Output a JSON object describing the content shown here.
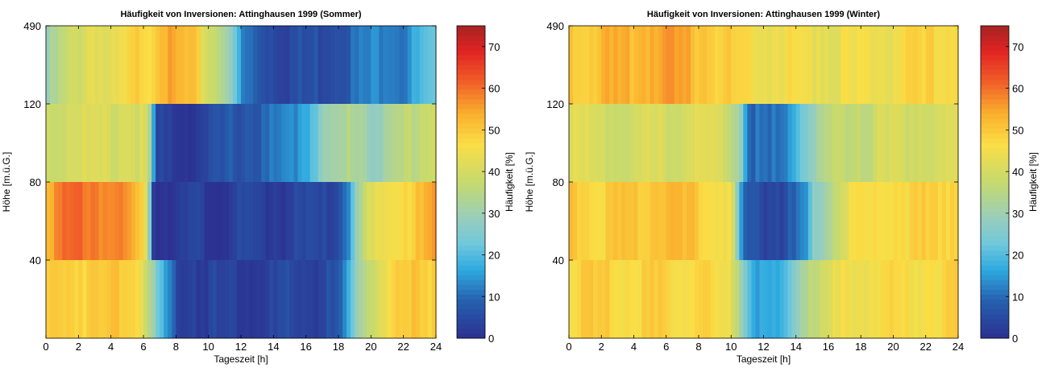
{
  "chart_data": [
    {
      "type": "heatmap",
      "title": "Häufigkeit von Inversionen: Attinghausen 1999 (Sommer)",
      "xlabel": "Tageszeit [h]",
      "ylabel": "Höhe [m.ü.G.]",
      "colorbar_label": "Häufigkeit [%]",
      "xlim": [
        0,
        24
      ],
      "x_ticks": [
        "0",
        "2",
        "4",
        "6",
        "8",
        "10",
        "12",
        "14",
        "16",
        "18",
        "20",
        "22",
        "24"
      ],
      "y_ticks": [
        "40",
        "80",
        "120",
        "490"
      ],
      "colorbar_ticks": [
        "0",
        "10",
        "20",
        "30",
        "40",
        "50",
        "60",
        "70"
      ],
      "clim": [
        0,
        75
      ],
      "bins_per_hour": 4,
      "rows": [
        {
          "band": "120-490",
          "keys": [
            [
              0,
              28
            ],
            [
              1,
              35
            ],
            [
              2,
              40
            ],
            [
              3,
              45
            ],
            [
              4,
              40
            ],
            [
              5,
              45
            ],
            [
              6,
              50
            ],
            [
              6.5,
              48
            ],
            [
              7,
              55
            ],
            [
              8,
              52
            ],
            [
              9,
              50
            ],
            [
              10,
              40
            ],
            [
              11,
              35
            ],
            [
              11.4,
              25
            ],
            [
              11.8,
              20
            ],
            [
              12,
              12
            ],
            [
              13,
              8
            ],
            [
              14,
              6
            ],
            [
              15,
              5
            ],
            [
              16,
              5
            ],
            [
              17,
              6
            ],
            [
              18,
              8
            ],
            [
              19,
              10
            ],
            [
              20,
              12
            ],
            [
              21,
              15
            ],
            [
              22,
              12
            ],
            [
              23,
              18
            ],
            [
              24,
              20
            ]
          ]
        },
        {
          "band": "80-120",
          "keys": [
            [
              0,
              38
            ],
            [
              1,
              40
            ],
            [
              2,
              42
            ],
            [
              3,
              40
            ],
            [
              4,
              40
            ],
            [
              5,
              42
            ],
            [
              6,
              40
            ],
            [
              6.5,
              30
            ],
            [
              6.7,
              4
            ],
            [
              7,
              2
            ],
            [
              8,
              3
            ],
            [
              9,
              2
            ],
            [
              10,
              3
            ],
            [
              11,
              6
            ],
            [
              12,
              8
            ],
            [
              13,
              8
            ],
            [
              14,
              10
            ],
            [
              15,
              12
            ],
            [
              16,
              18
            ],
            [
              17,
              28
            ],
            [
              18,
              30
            ],
            [
              19,
              35
            ],
            [
              20,
              30
            ],
            [
              21,
              30
            ],
            [
              22,
              35
            ],
            [
              23,
              38
            ],
            [
              24,
              40
            ]
          ]
        },
        {
          "band": "40-80",
          "keys": [
            [
              0,
              55
            ],
            [
              1,
              58
            ],
            [
              2,
              60
            ],
            [
              3,
              60
            ],
            [
              4,
              58
            ],
            [
              5,
              55
            ],
            [
              6,
              48
            ],
            [
              6.3,
              40
            ],
            [
              6.5,
              4
            ],
            [
              7,
              2
            ],
            [
              10,
              2
            ],
            [
              14,
              3
            ],
            [
              17,
              3
            ],
            [
              17.5,
              4
            ],
            [
              18,
              6
            ],
            [
              18.5,
              12
            ],
            [
              19,
              25
            ],
            [
              19.5,
              35
            ],
            [
              20,
              40
            ],
            [
              21,
              45
            ],
            [
              22,
              48
            ],
            [
              23,
              50
            ],
            [
              24,
              55
            ]
          ]
        },
        {
          "band": "0-40",
          "keys": [
            [
              0,
              48
            ],
            [
              1,
              50
            ],
            [
              2,
              50
            ],
            [
              3,
              48
            ],
            [
              4,
              50
            ],
            [
              5,
              52
            ],
            [
              6,
              45
            ],
            [
              6.5,
              30
            ],
            [
              7,
              20
            ],
            [
              7.5,
              12
            ],
            [
              8,
              5
            ],
            [
              10,
              3
            ],
            [
              14,
              3
            ],
            [
              17,
              4
            ],
            [
              18,
              6
            ],
            [
              18.5,
              12
            ],
            [
              19,
              25
            ],
            [
              19.5,
              35
            ],
            [
              20,
              40
            ],
            [
              21,
              45
            ],
            [
              22,
              48
            ],
            [
              23,
              50
            ],
            [
              24,
              50
            ]
          ]
        }
      ]
    },
    {
      "type": "heatmap",
      "title": "Häufigkeit von Inversionen: Attinghausen 1999 (Winter)",
      "xlabel": "Tageszeit [h]",
      "ylabel": "Höhe [m.ü.G.]",
      "colorbar_label": "Häufigkeit [%]",
      "xlim": [
        0,
        24
      ],
      "x_ticks": [
        "0",
        "2",
        "4",
        "6",
        "8",
        "10",
        "12",
        "14",
        "16",
        "18",
        "20",
        "22",
        "24"
      ],
      "y_ticks": [
        "40",
        "80",
        "120",
        "490"
      ],
      "colorbar_ticks": [
        "0",
        "10",
        "20",
        "30",
        "40",
        "50",
        "60",
        "70"
      ],
      "clim": [
        0,
        75
      ],
      "bins_per_hour": 4,
      "rows": [
        {
          "band": "120-490",
          "keys": [
            [
              0,
              50
            ],
            [
              2,
              52
            ],
            [
              4,
              52
            ],
            [
              5,
              55
            ],
            [
              6,
              55
            ],
            [
              7,
              53
            ],
            [
              8,
              52
            ],
            [
              9,
              50
            ],
            [
              10,
              48
            ],
            [
              11,
              47
            ],
            [
              12,
              46
            ],
            [
              13,
              45
            ],
            [
              14,
              45
            ],
            [
              16,
              44
            ],
            [
              18,
              44
            ],
            [
              20,
              45
            ],
            [
              22,
              47
            ],
            [
              24,
              48
            ]
          ]
        },
        {
          "band": "80-120",
          "keys": [
            [
              0,
              42
            ],
            [
              2,
              40
            ],
            [
              4,
              40
            ],
            [
              6,
              40
            ],
            [
              8,
              42
            ],
            [
              9,
              40
            ],
            [
              10,
              38
            ],
            [
              10.6,
              30
            ],
            [
              11,
              12
            ],
            [
              12,
              8
            ],
            [
              13,
              10
            ],
            [
              13.5,
              14
            ],
            [
              14,
              22
            ],
            [
              15,
              30
            ],
            [
              16,
              35
            ],
            [
              17,
              38
            ],
            [
              18,
              38
            ],
            [
              20,
              40
            ],
            [
              22,
              40
            ],
            [
              24,
              40
            ]
          ]
        },
        {
          "band": "40-80",
          "keys": [
            [
              0,
              50
            ],
            [
              2,
              48
            ],
            [
              4,
              50
            ],
            [
              5,
              52
            ],
            [
              6,
              52
            ],
            [
              7,
              50
            ],
            [
              8,
              50
            ],
            [
              9,
              48
            ],
            [
              10,
              45
            ],
            [
              10.4,
              25
            ],
            [
              10.7,
              10
            ],
            [
              11,
              6
            ],
            [
              12,
              5
            ],
            [
              13,
              6
            ],
            [
              14,
              8
            ],
            [
              14.8,
              15
            ],
            [
              15,
              25
            ],
            [
              16,
              35
            ],
            [
              17,
              42
            ],
            [
              18,
              45
            ],
            [
              20,
              48
            ],
            [
              22,
              48
            ],
            [
              24,
              50
            ]
          ]
        },
        {
          "band": "0-40",
          "keys": [
            [
              0,
              48
            ],
            [
              2,
              48
            ],
            [
              4,
              48
            ],
            [
              6,
              48
            ],
            [
              8,
              48
            ],
            [
              9,
              46
            ],
            [
              10,
              42
            ],
            [
              10.5,
              35
            ],
            [
              11,
              22
            ],
            [
              12,
              14
            ],
            [
              13,
              16
            ],
            [
              13.7,
              20
            ],
            [
              14,
              30
            ],
            [
              15,
              38
            ],
            [
              16,
              40
            ],
            [
              17,
              44
            ],
            [
              18,
              46
            ],
            [
              20,
              46
            ],
            [
              22,
              47
            ],
            [
              24,
              48
            ]
          ]
        }
      ]
    }
  ]
}
